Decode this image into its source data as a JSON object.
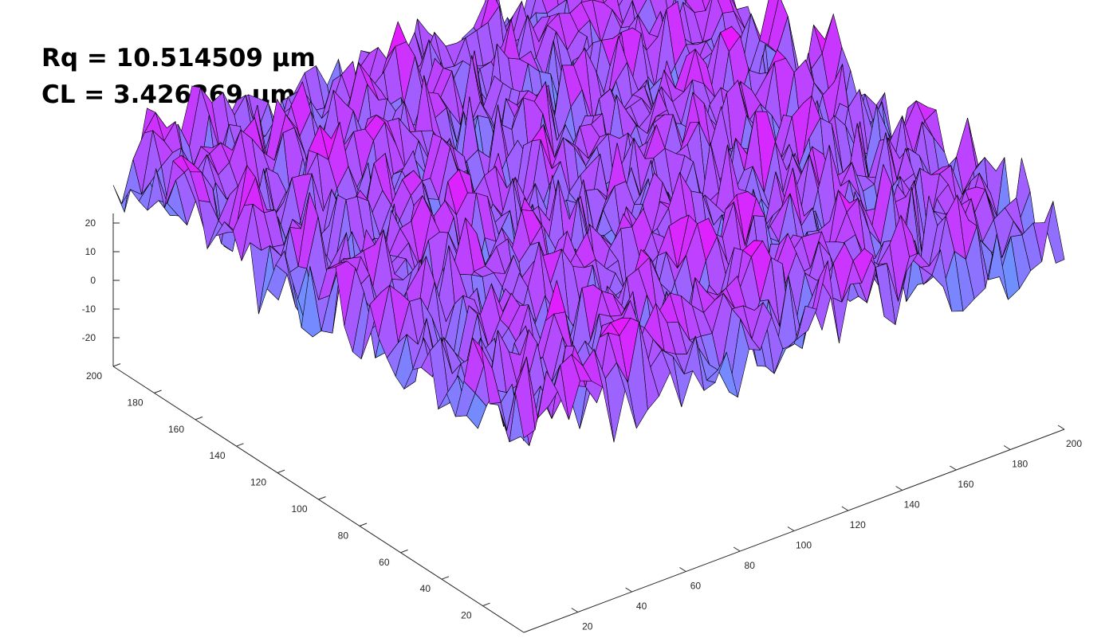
{
  "stats": {
    "rq": "Rq = 10.514509 µm",
    "cl": "CL = 3.426269 µm"
  },
  "chart_data": {
    "type": "surface",
    "title": "",
    "xlabel": "",
    "ylabel": "",
    "zlabel": "",
    "xlim": [
      0,
      200
    ],
    "ylim": [
      0,
      200
    ],
    "zlim": [
      -30,
      25
    ],
    "x_ticks": [
      "20",
      "40",
      "60",
      "80",
      "100",
      "120",
      "140",
      "160",
      "180",
      "200"
    ],
    "y_ticks": [
      "20",
      "40",
      "60",
      "80",
      "100",
      "120",
      "140",
      "160",
      "180",
      "200"
    ],
    "z_ticks": [
      "20",
      "10",
      "0",
      "-10",
      "-20"
    ],
    "z_tick_values": [
      20,
      10,
      0,
      -10,
      -20
    ],
    "x_tick_values": [
      20,
      40,
      60,
      80,
      100,
      120,
      140,
      160,
      180,
      200
    ],
    "y_tick_values": [
      20,
      40,
      60,
      80,
      100,
      120,
      140,
      160,
      180,
      200
    ],
    "grid": false,
    "colormap": "cool",
    "colors": {
      "low": "#00ffff",
      "high": "#ff00ff",
      "edge": "#000000"
    },
    "rms_height_um": 10.514509,
    "correlation_length_um": 3.426269
  }
}
